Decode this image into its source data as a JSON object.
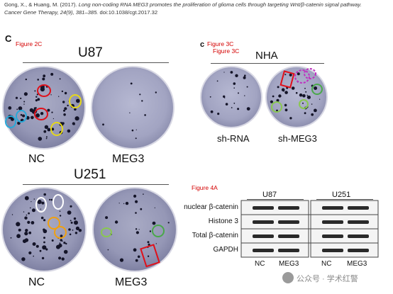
{
  "citation": {
    "authors": "Gong, X., & Huang, M. (2017).",
    "title": "Long non-coding RNA MEG3 promotes the proliferation of glioma cells through targeting Wnt/β-catenin signal pathway.",
    "journal": "Cancer Gene Therapy, 24(9), 381–385.",
    "doi": "doi:10.1038/cgt.2017.32"
  },
  "panel_letters": {
    "left": "C",
    "right": "c"
  },
  "figure_labels": {
    "fig2c": "Figure 2C",
    "fig3c_a": "Figure 3C",
    "fig3c_b": "Figure 3C",
    "fig4a": "Figure 4A"
  },
  "colony_assays": {
    "u87": {
      "title": "U87",
      "plates": [
        "NC",
        "MEG3"
      ]
    },
    "u251": {
      "title": "U251",
      "plates": [
        "NC",
        "MEG3"
      ]
    },
    "nha": {
      "title": "NHA",
      "plates": [
        "sh-RNA",
        "sh-MEG3"
      ]
    }
  },
  "annotation_colors": {
    "red": "#e0101a",
    "yellow": "#e6d81a",
    "cyan": "#28a8d8",
    "white": "#ffffff",
    "orange": "#f0a010",
    "green": "#4aa84a",
    "lightgreen": "#8ac850",
    "magenta": "#c030c0"
  },
  "western_blot": {
    "groups": [
      "U87",
      "U251"
    ],
    "rows": [
      "nuclear β-catenin",
      "Histone 3",
      "Total β-catenin",
      "GAPDH"
    ],
    "columns": [
      "NC",
      "MEG3",
      "NC",
      "MEG3"
    ]
  },
  "watermark": "公众号 · 学术红警"
}
